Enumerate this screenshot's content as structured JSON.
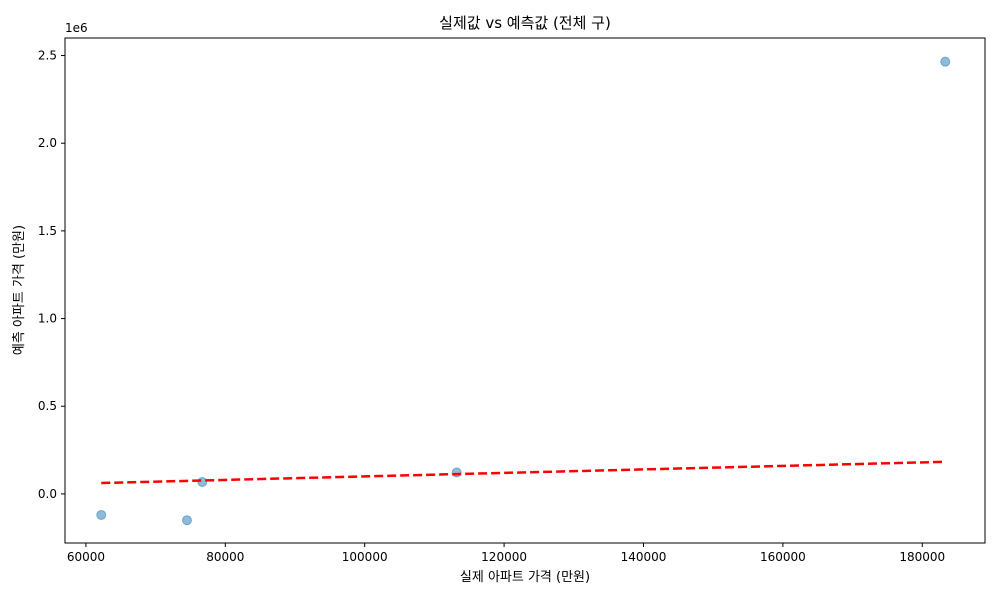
{
  "chart_data": {
    "type": "scatter",
    "title": "실제값 vs 예측값 (전체 구)",
    "xlabel": "실제 아파트 가격 (만원)",
    "ylabel": "예측 아파트 가격 (만원)",
    "y_scale_label": "1e6",
    "xlim": [
      57000,
      189000
    ],
    "ylim": [
      -0.28,
      2.6
    ],
    "x_ticks": [
      60000,
      80000,
      100000,
      120000,
      140000,
      160000,
      180000
    ],
    "x_tick_labels": [
      "60000",
      "80000",
      "100000",
      "120000",
      "140000",
      "160000",
      "180000"
    ],
    "y_ticks": [
      0.0,
      0.5,
      1.0,
      1.5,
      2.0,
      2.5
    ],
    "y_tick_labels": [
      "0.0",
      "0.5",
      "1.0",
      "1.5",
      "2.0",
      "2.5"
    ],
    "points": {
      "x": [
        62200,
        74500,
        76700,
        113200,
        183300
      ],
      "y": [
        -0.12,
        -0.15,
        0.068,
        0.122,
        2.465
      ]
    },
    "trend_line": {
      "x": [
        62200,
        183300
      ],
      "y": [
        0.062,
        0.183
      ]
    },
    "grid": false,
    "colors": {
      "points": "#1f77b4",
      "trend": "#ff0000"
    }
  }
}
